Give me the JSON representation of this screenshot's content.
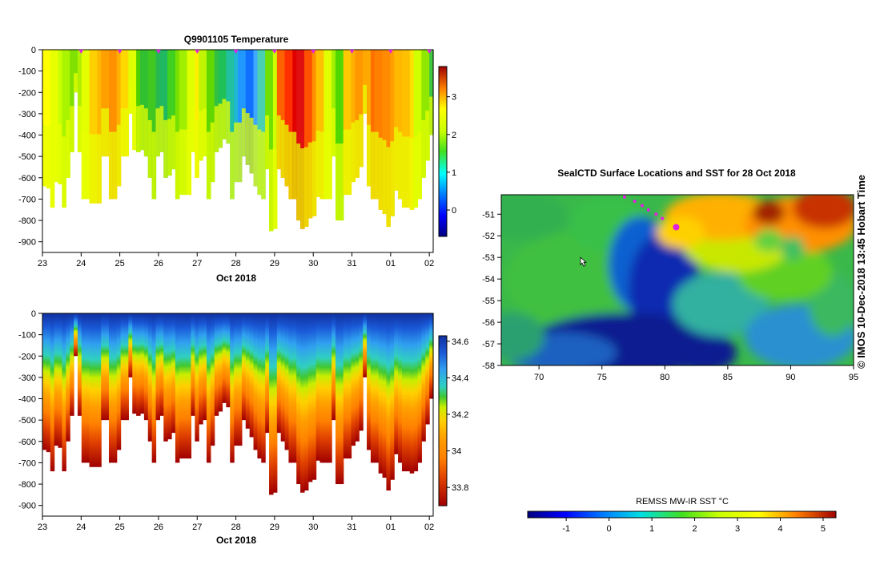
{
  "colors": {
    "background": "#ffffff",
    "axis": "#000000",
    "marker": "#e020e0",
    "cursor": "#ffffff"
  },
  "credit": "© IMOS 10-Dec-2018 13:45 Hobart Time",
  "chart_data": [
    {
      "id": "temperature",
      "type": "heatmap",
      "title": "Q9901105  Temperature",
      "xlabel": "Oct 2018",
      "x_ticks": [
        "23",
        "24",
        "25",
        "26",
        "27",
        "28",
        "29",
        "30",
        "31",
        "01",
        "02"
      ],
      "xlim": [
        23,
        33.1
      ],
      "y_ticks": [
        0,
        -100,
        -200,
        -300,
        -400,
        -500,
        -600,
        -700,
        -800,
        -900
      ],
      "ylim": [
        -950,
        0
      ],
      "colorbar": {
        "ticks": [
          0,
          1,
          2,
          3
        ],
        "tick_labels": [
          "0",
          "1",
          "2",
          "3"
        ],
        "range": [
          -0.7,
          3.8
        ]
      },
      "profile_markers_x": [
        24,
        25,
        26,
        27,
        28,
        29,
        30,
        31,
        32,
        33
      ],
      "profile_depths": [
        -640,
        -650,
        -740,
        -620,
        -630,
        -740,
        -600,
        -480,
        -200,
        -480,
        -700,
        -700,
        -720,
        -720,
        -720,
        -500,
        -500,
        -700,
        -700,
        -640,
        -500,
        -500,
        -300,
        -470,
        -480,
        -470,
        -500,
        -600,
        -700,
        -500,
        -480,
        -600,
        -590,
        -560,
        -700,
        -680,
        -680,
        -680,
        -480,
        -600,
        -520,
        -500,
        -700,
        -620,
        -480,
        -460,
        -420,
        -440,
        -700,
        -620,
        -620,
        -500,
        -540,
        -580,
        -640,
        -680,
        -700,
        -560,
        -850,
        -840,
        -560,
        -600,
        -640,
        -700,
        -700,
        -800,
        -840,
        -830,
        -790,
        -780,
        -690,
        -700,
        -700,
        -700,
        -500,
        -800,
        -800,
        -680,
        -680,
        -620,
        -600,
        -550,
        -300,
        -640,
        -700,
        -700,
        -750,
        -770,
        -830,
        -780,
        -660,
        -700,
        -740,
        -740,
        -750,
        -740,
        -700,
        -600,
        -520,
        -400
      ],
      "colors_per_x": [
        "#ffff00",
        "#e8ff00",
        "#c8ff00",
        "#aaf400",
        "#80e000",
        "#b0ef00",
        "#e4ff00",
        "#ffd000",
        "#ffb800",
        "#ffa000",
        "#ff9000",
        "#ffb000",
        "#ffd800",
        "#e0ff00",
        "#50d000",
        "#30c030",
        "#40c820",
        "#28b850",
        "#20b860",
        "#40d020",
        "#78e000",
        "#a0ee00",
        "#e0ff00",
        "#fff000",
        "#c0f400",
        "#60d800",
        "#34c040",
        "#20c058",
        "#20c0a0",
        "#20b8d0",
        "#2098ff",
        "#1070ff",
        "#40a8ff",
        "#48d0b0",
        "#70e000",
        "#d0ff00",
        "#ff6000",
        "#ff3000",
        "#e00000",
        "#e01010",
        "#ff5000",
        "#ff9000",
        "#ffc000",
        "#e0ff00",
        "#a0f000",
        "#50d800",
        "#ffc800",
        "#ffb000",
        "#ff9800",
        "#ffa800",
        "#ff7000",
        "#ff8000",
        "#ff8c00",
        "#ffa000",
        "#ffb800",
        "#ffc000",
        "#ffe000",
        "#d0ff00",
        "#90e800",
        "#40c840"
      ],
      "depth_gradient_stops": [
        0.0,
        0.15,
        0.35,
        1.0
      ]
    },
    {
      "id": "salinity",
      "type": "heatmap",
      "title": "",
      "xlabel": "Oct 2018",
      "x_ticks": [
        "23",
        "24",
        "25",
        "26",
        "27",
        "28",
        "29",
        "30",
        "31",
        "01",
        "02"
      ],
      "xlim": [
        23,
        33.1
      ],
      "y_ticks": [
        0,
        -100,
        -200,
        -300,
        -400,
        -500,
        -600,
        -700,
        -800,
        -900
      ],
      "ylim": [
        -950,
        0
      ],
      "colorbar": {
        "ticks": [
          33.8,
          34.0,
          34.2,
          34.4,
          34.6
        ],
        "tick_labels": [
          "33.8",
          "34",
          "34.2",
          "34.4",
          "34.6"
        ],
        "range": [
          33.7,
          34.63
        ]
      },
      "profile_depths": [
        -640,
        -650,
        -740,
        -620,
        -630,
        -740,
        -600,
        -480,
        -200,
        -480,
        -700,
        -700,
        -720,
        -720,
        -720,
        -500,
        -500,
        -700,
        -700,
        -640,
        -500,
        -500,
        -300,
        -470,
        -480,
        -470,
        -500,
        -600,
        -700,
        -500,
        -480,
        -600,
        -590,
        -560,
        -700,
        -680,
        -680,
        -680,
        -480,
        -600,
        -520,
        -500,
        -700,
        -620,
        -480,
        -460,
        -420,
        -440,
        -700,
        -620,
        -620,
        -500,
        -540,
        -580,
        -640,
        -680,
        -700,
        -560,
        -850,
        -840,
        -560,
        -600,
        -640,
        -700,
        -700,
        -800,
        -840,
        -830,
        -790,
        -780,
        -690,
        -700,
        -700,
        -700,
        -500,
        -800,
        -800,
        -680,
        -680,
        -620,
        -600,
        -550,
        -300,
        -640,
        -700,
        -700,
        -750,
        -770,
        -830,
        -780,
        -660,
        -700,
        -740,
        -740,
        -750,
        -740,
        -700,
        -600,
        -520,
        -400
      ]
    },
    {
      "id": "sst_map",
      "type": "heatmap",
      "title": "SealCTD Surface Locations and SST for 28 Oct 2018",
      "x_ticks": [
        "70",
        "75",
        "80",
        "85",
        "90",
        "95"
      ],
      "xlim": [
        67,
        95
      ],
      "y_ticks": [
        "-51",
        "-52",
        "-53",
        "-54",
        "-55",
        "-56",
        "-57",
        "-58"
      ],
      "ylim": [
        -58,
        -50.1
      ],
      "colorbar": {
        "label": "REMSS MW-IR SST °C",
        "ticks": [
          -1,
          0,
          1,
          2,
          3,
          4,
          5
        ],
        "tick_labels": [
          "-1",
          "0",
          "1",
          "2",
          "3",
          "4",
          "5"
        ],
        "range": [
          -1.9,
          5.3
        ]
      },
      "track_lon": [
        76.8,
        77.6,
        78.2,
        78.7,
        79.3,
        79.8
      ],
      "track_lat": [
        -50.2,
        -50.4,
        -50.6,
        -50.8,
        -51.0,
        -51.2
      ],
      "current_position": {
        "lon": 80.9,
        "lat": -51.6
      },
      "cursor_position": {
        "lon": 73.3,
        "lat": -53.0
      }
    }
  ]
}
